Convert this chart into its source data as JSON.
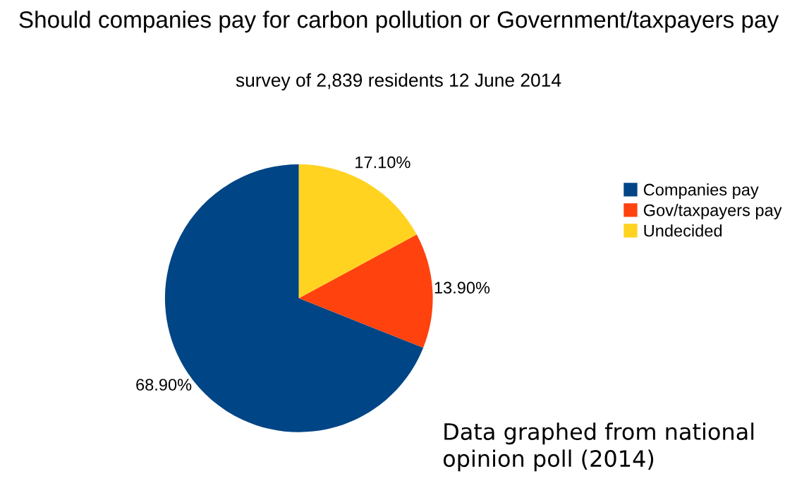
{
  "chart_data": {
    "type": "pie",
    "title": "Should companies pay for carbon pollution or Government/taxpayers pay",
    "subtitle": "survey of 2,839 residents 12 June 2014",
    "categories": [
      "Companies pay",
      "Gov/taxpayers pay",
      "Undecided"
    ],
    "values": [
      68.9,
      13.9,
      17.1
    ],
    "value_labels": [
      "68.90%",
      "13.90%",
      "17.10%"
    ],
    "colors": [
      "#004586",
      "#ff420e",
      "#ffd320"
    ],
    "legend": "right",
    "annotations": [
      "Data graphed from national opinion poll (2014)"
    ]
  }
}
